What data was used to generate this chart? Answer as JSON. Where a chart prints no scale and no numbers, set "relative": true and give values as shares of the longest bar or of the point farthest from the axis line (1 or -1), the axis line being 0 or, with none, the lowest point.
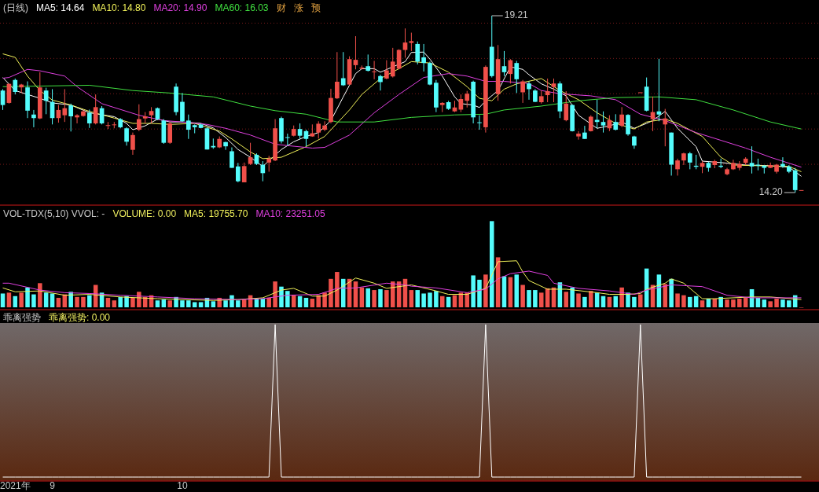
{
  "chart_data": [
    {
      "type": "candlestick",
      "title": "(日线)",
      "legend": "top left",
      "grid": "y",
      "tick_labels": false,
      "yticks": [
        {
          "value": 15,
          "label": null
        },
        {
          "value": 16,
          "label": null
        },
        {
          "value": 17,
          "label": null
        },
        {
          "value": 18,
          "label": null
        },
        {
          "value": 19,
          "label": null
        }
      ],
      "categories": [
        null,
        null,
        null,
        null,
        null,
        null,
        null,
        null,
        null,
        null,
        null,
        null,
        null,
        null,
        null,
        null,
        null,
        null,
        null,
        null,
        null,
        null,
        null,
        null,
        null,
        null,
        null,
        null,
        null,
        null,
        null,
        null,
        null,
        null,
        null,
        null,
        null,
        null,
        null,
        null,
        null,
        null,
        null,
        null,
        null,
        null,
        null,
        null,
        null,
        null,
        null,
        null,
        null,
        null,
        null,
        null,
        null,
        null,
        null,
        null,
        null,
        null,
        null,
        null,
        null,
        null,
        null,
        null,
        null,
        null,
        null,
        null,
        null,
        null,
        null,
        null,
        null,
        null,
        null,
        null,
        null,
        null,
        null,
        null,
        null,
        null,
        null,
        null,
        null,
        null,
        null,
        null,
        null,
        null,
        null,
        null,
        null,
        null,
        null,
        null,
        null,
        null,
        null,
        null,
        null,
        null,
        null,
        null,
        null,
        null,
        null,
        null,
        null,
        null,
        null,
        null,
        null,
        null,
        null,
        null,
        null,
        null,
        null,
        null,
        null,
        null,
        null,
        null,
        null,
        null
      ],
      "ohlc": [
        [
          17.09,
          17.13,
          16.54,
          16.68
        ],
        [
          16.74,
          17.29,
          16.72,
          17.28
        ],
        [
          17.39,
          17.43,
          16.98,
          17.05
        ],
        [
          17.18,
          17.28,
          17.02,
          17.26
        ],
        [
          17.18,
          17.35,
          16.31,
          16.52
        ],
        [
          16.41,
          16.54,
          16.05,
          16.31
        ],
        [
          16.3,
          17.61,
          16.28,
          17.18
        ],
        [
          17.09,
          17.17,
          16.42,
          16.8
        ],
        [
          16.77,
          17.13,
          16.13,
          16.31
        ],
        [
          16.31,
          16.68,
          16.18,
          16.54
        ],
        [
          16.39,
          17.13,
          16.2,
          16.59
        ],
        [
          16.67,
          16.72,
          15.93,
          16.36
        ],
        [
          16.33,
          16.42,
          16.16,
          16.39
        ],
        [
          16.37,
          16.54,
          16.35,
          16.5
        ],
        [
          16.46,
          16.55,
          16.03,
          16.16
        ],
        [
          16.16,
          16.98,
          16.13,
          16.62
        ],
        [
          16.59,
          16.65,
          16.13,
          16.16
        ],
        [
          16.1,
          16.2,
          16.0,
          16.11
        ],
        [
          16.12,
          16.2,
          16.02,
          16.13
        ],
        [
          16.28,
          16.31,
          16.02,
          16.05
        ],
        [
          16.02,
          16.05,
          15.53,
          15.64
        ],
        [
          15.41,
          15.9,
          15.27,
          15.83
        ],
        [
          15.98,
          16.7,
          15.94,
          16.28
        ],
        [
          16.3,
          16.48,
          16.16,
          16.36
        ],
        [
          16.39,
          16.62,
          16.16,
          16.51
        ],
        [
          16.59,
          16.61,
          16.25,
          16.28
        ],
        [
          16.24,
          16.28,
          15.58,
          15.61
        ],
        [
          15.61,
          16.2,
          15.58,
          16.16
        ],
        [
          17.2,
          17.29,
          16.39,
          16.48
        ],
        [
          16.77,
          17.02,
          16.2,
          16.22
        ],
        [
          16.24,
          16.41,
          15.72,
          15.98
        ],
        [
          16.11,
          16.13,
          15.88,
          16.05
        ],
        [
          16.13,
          16.15,
          16.02,
          16.03
        ],
        [
          16.02,
          16.05,
          15.42,
          15.42
        ],
        [
          15.52,
          15.73,
          15.44,
          15.48
        ],
        [
          15.48,
          15.79,
          15.46,
          15.72
        ],
        [
          15.63,
          15.64,
          15.41,
          15.51
        ],
        [
          15.37,
          15.48,
          14.9,
          14.9
        ],
        [
          14.94,
          15.04,
          14.49,
          14.52
        ],
        [
          14.49,
          15.05,
          14.49,
          14.95
        ],
        [
          15.01,
          15.61,
          14.98,
          15.2
        ],
        [
          15.27,
          15.31,
          14.98,
          15.01
        ],
        [
          14.99,
          15.09,
          14.52,
          14.75
        ],
        [
          15.05,
          15.24,
          14.79,
          15.16
        ],
        [
          15.11,
          16.28,
          15.09,
          16.02
        ],
        [
          16.31,
          16.35,
          15.59,
          15.65
        ],
        [
          15.77,
          15.87,
          15.53,
          15.75
        ],
        [
          15.81,
          16.1,
          15.79,
          16.0
        ],
        [
          16.0,
          16.16,
          15.72,
          15.81
        ],
        [
          15.94,
          15.98,
          15.51,
          15.72
        ],
        [
          15.79,
          16.13,
          15.78,
          15.88
        ],
        [
          15.9,
          16.22,
          15.73,
          16.15
        ],
        [
          15.98,
          16.22,
          15.94,
          16.1
        ],
        [
          16.2,
          17.14,
          16.16,
          16.88
        ],
        [
          16.87,
          18.18,
          16.85,
          17.34
        ],
        [
          17.44,
          18.18,
          17.22,
          17.24
        ],
        [
          17.26,
          18.06,
          17.24,
          17.98
        ],
        [
          17.81,
          18.63,
          17.69,
          17.96
        ],
        [
          17.71,
          17.8,
          17.69,
          17.74
        ],
        [
          17.78,
          18.11,
          17.63,
          17.65
        ],
        [
          17.61,
          17.93,
          17.41,
          17.63
        ],
        [
          17.5,
          17.54,
          17.09,
          17.33
        ],
        [
          17.43,
          17.95,
          17.41,
          17.66
        ],
        [
          17.49,
          18.3,
          17.46,
          17.91
        ],
        [
          17.71,
          18.26,
          17.69,
          18.24
        ],
        [
          18.24,
          18.85,
          18.02,
          18.45
        ],
        [
          18.44,
          18.73,
          18.21,
          18.49
        ],
        [
          18.41,
          18.48,
          17.83,
          17.91
        ],
        [
          18.03,
          18.41,
          17.63,
          17.87
        ],
        [
          17.87,
          17.91,
          17.24,
          17.26
        ],
        [
          17.31,
          17.39,
          16.48,
          16.61
        ],
        [
          16.68,
          16.76,
          16.48,
          16.74
        ],
        [
          16.76,
          16.8,
          16.54,
          16.57
        ],
        [
          16.5,
          16.8,
          16.48,
          16.61
        ],
        [
          16.55,
          16.98,
          16.48,
          16.85
        ],
        [
          16.8,
          17.08,
          16.61,
          17.0
        ],
        [
          17.34,
          17.37,
          16.16,
          16.33
        ],
        [
          16.19,
          16.39,
          15.98,
          16.18
        ],
        [
          16.05,
          17.8,
          15.9,
          17.76
        ],
        [
          18.33,
          19.21,
          17.46,
          17.5
        ],
        [
          16.99,
          18.38,
          16.8,
          17.98
        ],
        [
          17.78,
          18.21,
          17.5,
          17.61
        ],
        [
          17.56,
          17.98,
          17.29,
          17.95
        ],
        [
          17.87,
          17.93,
          17.02,
          17.41
        ],
        [
          17.04,
          17.39,
          16.74,
          17.35
        ],
        [
          17.29,
          17.35,
          16.83,
          17.13
        ],
        [
          17.09,
          17.13,
          16.76,
          16.77
        ],
        [
          16.76,
          17.09,
          16.72,
          16.93
        ],
        [
          16.96,
          17.43,
          16.76,
          17.07
        ],
        [
          17.19,
          17.43,
          16.76,
          17.29
        ],
        [
          17.29,
          17.35,
          16.31,
          16.5
        ],
        [
          16.25,
          17.07,
          16.22,
          16.72
        ],
        [
          16.68,
          16.7,
          15.93,
          15.94
        ],
        [
          15.79,
          15.94,
          15.7,
          15.87
        ],
        [
          15.9,
          16.09,
          15.72,
          15.72
        ],
        [
          15.94,
          16.39,
          15.93,
          16.35
        ],
        [
          16.26,
          16.83,
          16.02,
          16.2
        ],
        [
          16.2,
          16.5,
          15.9,
          16.1
        ],
        [
          16.02,
          16.39,
          15.94,
          16.25
        ],
        [
          16.2,
          16.42,
          15.96,
          15.98
        ],
        [
          16.09,
          16.62,
          16.05,
          16.41
        ],
        [
          16.4,
          16.42,
          15.81,
          15.85
        ],
        [
          15.79,
          15.81,
          15.44,
          15.53
        ],
        [
          17.04,
          17.04,
          17.04,
          17.04
        ],
        [
          17.2,
          17.46,
          16.5,
          16.52
        ],
        [
          16.28,
          16.92,
          15.94,
          16.48
        ],
        [
          16.5,
          17.99,
          16.22,
          16.41
        ],
        [
          16.13,
          16.57,
          15.51,
          16.3
        ],
        [
          15.9,
          15.9,
          14.68,
          14.99
        ],
        [
          14.86,
          15.16,
          14.68,
          15.11
        ],
        [
          15.11,
          15.33,
          14.98,
          15.31
        ],
        [
          15.31,
          15.35,
          14.86,
          15.05
        ],
        [
          14.96,
          15.27,
          14.86,
          14.93
        ],
        [
          14.93,
          15.09,
          14.75,
          15.04
        ],
        [
          15.04,
          15.07,
          14.79,
          14.9
        ],
        [
          14.98,
          15.13,
          14.89,
          15.09
        ],
        [
          14.96,
          15.16,
          14.89,
          14.93
        ],
        [
          14.72,
          14.9,
          14.69,
          14.86
        ],
        [
          14.86,
          15.13,
          14.84,
          15.04
        ],
        [
          14.9,
          15.09,
          14.83,
          15.01
        ],
        [
          15.04,
          15.2,
          14.98,
          15.16
        ],
        [
          15.04,
          15.51,
          14.74,
          14.94
        ],
        [
          14.99,
          15.16,
          14.83,
          14.96
        ],
        [
          14.96,
          14.98,
          14.74,
          14.9
        ],
        [
          14.9,
          15.05,
          14.89,
          14.98
        ],
        [
          14.79,
          15.01,
          14.74,
          14.99
        ],
        [
          15.01,
          15.2,
          14.9,
          14.94
        ],
        [
          14.94,
          14.98,
          14.75,
          14.79
        ],
        [
          14.83,
          14.9,
          14.2,
          14.27
        ],
        [
          14.27,
          14.27,
          14.27,
          14.27
        ]
      ],
      "series": [
        {
          "name": "MA5: 14.64",
          "type": "line",
          "color": "#ffffff",
          "values": [
            17.46,
            null,
            17.09,
            null,
            null,
            null,
            16.87,
            null,
            16.74,
            null,
            null,
            16.68,
            null,
            null,
            16.46,
            null,
            null,
            null,
            16.35,
            null,
            16.16,
            15.98,
            null,
            16.09,
            null,
            16.28,
            null,
            16.2,
            null,
            16.2,
            null,
            null,
            16.16,
            null,
            16.03,
            null,
            15.76,
            null,
            15.42,
            null,
            15.2,
            null,
            14.94,
            null,
            null,
            15.42,
            null,
            15.64,
            null,
            15.79,
            null,
            15.9,
            null,
            16.24,
            null,
            16.91,
            null,
            17.57,
            17.71,
            null,
            17.71,
            17.61,
            null,
            17.76,
            null,
            17.91,
            18.17,
            null,
            18.18,
            17.98,
            null,
            17.5,
            null,
            16.91,
            16.72,
            null,
            16.68,
            16.61,
            16.8,
            null,
            17.09,
            null,
            17.76,
            null,
            17.69,
            17.54,
            null,
            17.28,
            null,
            17.13,
            null,
            16.94,
            null,
            16.39,
            null,
            null,
            16.02,
            null,
            16.09,
            null,
            16.2,
            null,
            16.02,
            null,
            16.16,
            16.24,
            null,
            16.5,
            null,
            16.02,
            null,
            null,
            15.5,
            15.09,
            null,
            null,
            15.05,
            null,
            null,
            null,
            14.98,
            null,
            null,
            null,
            14.96,
            null,
            null,
            14.92,
            null,
            14.66
          ]
        },
        {
          "name": "MA10: 14.80",
          "type": "line",
          "color": "#f2f25a",
          "values": [
            18.13,
            null,
            18.03,
            null,
            17.5,
            null,
            17.09,
            null,
            16.82,
            null,
            null,
            16.68,
            null,
            null,
            16.5,
            null,
            null,
            null,
            16.31,
            null,
            null,
            16.16,
            null,
            null,
            16.16,
            null,
            null,
            16.13,
            null,
            null,
            null,
            16.16,
            null,
            null,
            null,
            15.94,
            null,
            15.72,
            null,
            null,
            15.35,
            null,
            15.16,
            null,
            null,
            15.2,
            null,
            null,
            null,
            15.5,
            null,
            null,
            15.79,
            null,
            null,
            null,
            16.54,
            null,
            16.98,
            null,
            null,
            17.43,
            null,
            null,
            17.71,
            null,
            17.91,
            null,
            null,
            17.87,
            null,
            null,
            17.61,
            null,
            null,
            17.2,
            null,
            16.87,
            null,
            16.8,
            null,
            17.13,
            null,
            17.28,
            null,
            null,
            null,
            17.43,
            null,
            null,
            17.09,
            null,
            null,
            16.83,
            null,
            null,
            16.46,
            null,
            null,
            16.16,
            null,
            null,
            16.0,
            null,
            16.2,
            null,
            null,
            16.28,
            null,
            16.16,
            null,
            null,
            null,
            15.79,
            null,
            null,
            15.2,
            null,
            14.98,
            null,
            null,
            null,
            14.96,
            null,
            null,
            null,
            null,
            14.94,
            null,
            14.79
          ]
        },
        {
          "name": "MA20: 14.90",
          "type": "line",
          "color": "#e040e0",
          "values": [
            17.44,
            17.46,
            null,
            null,
            17.69,
            null,
            17.65,
            null,
            null,
            null,
            17.5,
            null,
            17.2,
            null,
            null,
            null,
            16.72,
            null,
            null,
            null,
            null,
            null,
            16.39,
            null,
            null,
            null,
            16.24,
            null,
            null,
            16.2,
            null,
            null,
            null,
            16.13,
            null,
            null,
            16.02,
            null,
            null,
            null,
            15.83,
            null,
            null,
            null,
            15.57,
            null,
            15.53,
            null,
            null,
            null,
            15.46,
            null,
            15.48,
            null,
            null,
            null,
            15.83,
            null,
            null,
            null,
            16.46,
            null,
            null,
            null,
            16.98,
            null,
            null,
            null,
            17.46,
            null,
            null,
            null,
            17.57,
            null,
            null,
            17.5,
            null,
            null,
            17.35,
            null,
            null,
            17.35,
            null,
            null,
            null,
            17.29,
            null,
            17.09,
            null,
            null,
            17.0,
            null,
            null,
            null,
            null,
            16.94,
            null,
            null,
            null,
            16.83,
            null,
            null,
            null,
            16.42,
            null,
            null,
            null,
            16.24,
            null,
            null,
            null,
            null,
            15.9,
            null,
            null,
            null,
            15.68,
            null,
            null,
            null,
            15.46,
            null,
            null,
            null,
            15.2,
            null,
            null,
            null,
            null,
            14.92
          ]
        },
        {
          "name": "MA60: 16.03",
          "type": "line",
          "color": "#40e040",
          "values": [
            17.2,
            null,
            null,
            null,
            null,
            null,
            null,
            null,
            null,
            null,
            null,
            null,
            null,
            null,
            17.24,
            null,
            null,
            null,
            null,
            null,
            null,
            17.09,
            null,
            null,
            null,
            null,
            null,
            17.02,
            null,
            null,
            null,
            null,
            null,
            null,
            16.91,
            null,
            null,
            null,
            null,
            null,
            16.65,
            null,
            null,
            null,
            16.52,
            null,
            null,
            null,
            null,
            16.42,
            null,
            null,
            null,
            null,
            16.2,
            null,
            null,
            null,
            null,
            null,
            16.2,
            null,
            null,
            null,
            null,
            null,
            16.33,
            null,
            null,
            null,
            null,
            null,
            null,
            16.4,
            null,
            null,
            null,
            null,
            16.42,
            null,
            null,
            16.54,
            null,
            null,
            null,
            null,
            null,
            16.65,
            null,
            null,
            null,
            null,
            null,
            16.8,
            null,
            null,
            null,
            null,
            null,
            16.89,
            null,
            null,
            null,
            null,
            null,
            null,
            16.91,
            null,
            null,
            null,
            null,
            null,
            16.83,
            null,
            null,
            null,
            null,
            null,
            16.54,
            null,
            null,
            null,
            null,
            null,
            16.2,
            null,
            null,
            null,
            null,
            16.0
          ]
        }
      ],
      "annotations": [
        "19.21",
        "14.20",
        "财",
        "涨",
        "预"
      ]
    },
    {
      "type": "bar",
      "title": "VOL-TDX(5,10) VVOL: -",
      "relative": true,
      "legend": "top left",
      "tick_labels": false,
      "categories": [
        null,
        null,
        null,
        null,
        null,
        null,
        null,
        null,
        null,
        null,
        null,
        null,
        null,
        null,
        null,
        null,
        null,
        null,
        null,
        null,
        null,
        null,
        null,
        null,
        null,
        null,
        null,
        null,
        null,
        null,
        null,
        null,
        null,
        null,
        null,
        null,
        null,
        null,
        null,
        null,
        null,
        null,
        null,
        null,
        null,
        null,
        null,
        null,
        null,
        null,
        null,
        null,
        null,
        null,
        null,
        null,
        null,
        null,
        null,
        null,
        null,
        null,
        null,
        null,
        null,
        null,
        null,
        null,
        null,
        null,
        null,
        null,
        null,
        null,
        null,
        null,
        null,
        null,
        null,
        null,
        null,
        null,
        null,
        null,
        null,
        null,
        null,
        null,
        null,
        null,
        null,
        null,
        null,
        null,
        null,
        null,
        null,
        null,
        null,
        null,
        null,
        null,
        null,
        null,
        null,
        null,
        null,
        null,
        null,
        null,
        null,
        null,
        null,
        null,
        null,
        null,
        null,
        null,
        null,
        null,
        null,
        null,
        null,
        null,
        null,
        null,
        null,
        null,
        null,
        null
      ],
      "annotations": [
        "VOLUME: 0.00"
      ],
      "series": [
        {
          "color": "#f0504a",
          "values": [
            null,
            0.17,
            null,
            0.17,
            null,
            null,
            0.28,
            null,
            null,
            0.11,
            0.15,
            null,
            0.12,
            0.12,
            null,
            0.26,
            null,
            0.11,
            0.08,
            null,
            null,
            0.11,
            0.18,
            0.12,
            0.14,
            null,
            null,
            0.08,
            null,
            null,
            null,
            null,
            null,
            null,
            null,
            0.11,
            null,
            null,
            null,
            0.09,
            0.14,
            null,
            null,
            0.11,
            0.3,
            null,
            null,
            0.14,
            null,
            null,
            0.1,
            0.14,
            0.17,
            0.33,
            0.41,
            null,
            0.33,
            0.3,
            0.23,
            null,
            0.2,
            null,
            0.2,
            0.3,
            0.3,
            0.33,
            0.2,
            null,
            null,
            null,
            null,
            0.13,
            null,
            0.14,
            0.17,
            0.17,
            null,
            null,
            0.38,
            null,
            0.58,
            null,
            0.35,
            null,
            0.26,
            null,
            null,
            0.17,
            0.22,
            0.23,
            null,
            0.18,
            null,
            0.16,
            null,
            0.19,
            null,
            null,
            0.12,
            null,
            0.23,
            null,
            null,
            0.15,
            null,
            0.26,
            null,
            0.27,
            null,
            0.16,
            0.14,
            null,
            null,
            0.08,
            null,
            0.1,
            null,
            0.09,
            0.09,
            0.1,
            0.11,
            null,
            null,
            null,
            0.07,
            0.1,
            null,
            null,
            null,
            0
          ]
        },
        {
          "color": "#54fcfc",
          "values": [
            0.16,
            null,
            0.13,
            null,
            0.23,
            0.15,
            null,
            0.17,
            0.16,
            null,
            null,
            0.18,
            null,
            null,
            0.14,
            null,
            0.17,
            null,
            null,
            0.12,
            0.13,
            null,
            null,
            null,
            null,
            0.08,
            0.09,
            null,
            0.12,
            0.08,
            0.08,
            0.06,
            0.06,
            0.11,
            0.07,
            null,
            0.08,
            0.14,
            0.08,
            null,
            null,
            0.1,
            0.1,
            null,
            null,
            0.24,
            0.19,
            null,
            0.13,
            0.11,
            null,
            null,
            null,
            null,
            null,
            0.33,
            null,
            null,
            null,
            0.22,
            null,
            0.21,
            null,
            null,
            null,
            null,
            null,
            0.2,
            0.16,
            0.17,
            0.19,
            null,
            0.12,
            null,
            null,
            null,
            0.37,
            0.32,
            null,
            1,
            null,
            0.36,
            null,
            0.38,
            null,
            0.2,
            0.2,
            null,
            null,
            null,
            0.29,
            null,
            0.23,
            null,
            0.12,
            null,
            0.17,
            0.13,
            null,
            0.13,
            null,
            0.17,
            0.12,
            null,
            0.45,
            null,
            0.38,
            null,
            0.33,
            null,
            null,
            0.12,
            0.13,
            null,
            0.1,
            null,
            0.12,
            null,
            null,
            null,
            null,
            0.21,
            0.11,
            0.09,
            null,
            null,
            0.09,
            0.08,
            0.14,
            null
          ]
        },
        {
          "name": "MA5: 19755.70",
          "type": "line",
          "color": "#f2f25a",
          "values": [
            0.225,
            null,
            0.18,
            null,
            null,
            null,
            0.19,
            null,
            null,
            null,
            0.14,
            null,
            null,
            null,
            0.15,
            null,
            null,
            null,
            null,
            0.12,
            null,
            null,
            0.11,
            null,
            null,
            0.1,
            null,
            null,
            null,
            0.09,
            null,
            null,
            null,
            null,
            0.08,
            null,
            null,
            null,
            0.09,
            null,
            null,
            null,
            0.11,
            null,
            null,
            0.2,
            null,
            0.22,
            null,
            null,
            0.13,
            null,
            0.13,
            null,
            0.2,
            null,
            null,
            0.34,
            null,
            null,
            0.28,
            null,
            0.22,
            null,
            null,
            0.25,
            0.26,
            null,
            null,
            null,
            0.19,
            null,
            0.15,
            null,
            null,
            0.15,
            null,
            null,
            0.22,
            null,
            0.53,
            null,
            null,
            0.54,
            0.41,
            0.31,
            null,
            null,
            0.21,
            null,
            null,
            0.21,
            null,
            null,
            null,
            null,
            0.17,
            null,
            0.15,
            null,
            null,
            0.15,
            null,
            0.16,
            0.21,
            null,
            null,
            0.28,
            0.33,
            null,
            0.28,
            null,
            null,
            0.1,
            null,
            0.1,
            null,
            null,
            null,
            null,
            null,
            0.12,
            null,
            null,
            0.12,
            null,
            null,
            null,
            null,
            0.09
          ]
        },
        {
          "name": "MA10: 23251.05",
          "type": "line",
          "color": "#e040e0",
          "values": [
            0.28,
            0.28,
            null,
            null,
            null,
            null,
            0.2,
            null,
            null,
            null,
            0.17,
            null,
            null,
            null,
            0.16,
            null,
            null,
            null,
            null,
            0.14,
            null,
            null,
            null,
            null,
            null,
            0.12,
            null,
            null,
            null,
            null,
            null,
            0.1,
            null,
            null,
            null,
            null,
            null,
            null,
            0.09,
            null,
            null,
            null,
            0.1,
            null,
            null,
            null,
            0.14,
            null,
            null,
            null,
            null,
            0.15,
            null,
            null,
            0.22,
            null,
            null,
            0.225,
            null,
            null,
            null,
            null,
            0.28,
            null,
            null,
            0.26,
            0.245,
            null,
            null,
            null,
            0.225,
            null,
            null,
            null,
            null,
            0.17,
            null,
            null,
            0.21,
            null,
            0.33,
            null,
            0.39,
            null,
            null,
            0.42,
            null,
            null,
            0.37,
            0.28,
            null,
            null,
            null,
            0.22,
            null,
            null,
            null,
            null,
            0.19,
            null,
            null,
            null,
            0.15,
            null,
            0.2,
            null,
            null,
            null,
            0.26,
            null,
            null,
            null,
            null,
            0.24,
            null,
            null,
            null,
            0.14,
            null,
            null,
            null,
            0.11,
            null,
            null,
            null,
            null,
            null,
            null,
            null,
            0.11
          ]
        }
      ]
    },
    {
      "type": "line",
      "title": "乖离强势",
      "relative": true,
      "tick_labels": "x",
      "categories": [
        null,
        null,
        "2021年",
        null,
        null,
        null,
        null,
        null,
        "9",
        null,
        null,
        null,
        null,
        null,
        null,
        null,
        null,
        null,
        null,
        null,
        null,
        null,
        null,
        null,
        null,
        null,
        null,
        null,
        null,
        "10",
        null,
        null,
        null,
        null,
        null,
        null,
        null,
        null,
        null,
        null,
        null,
        null,
        null,
        null,
        null,
        null,
        null,
        null,
        null,
        null,
        null,
        null,
        null,
        null,
        null,
        null,
        null,
        null,
        null,
        null,
        null,
        null,
        null,
        null,
        null,
        null,
        null,
        null,
        null,
        null,
        null,
        null,
        null,
        null,
        null,
        null,
        null,
        null,
        null,
        null,
        null,
        null,
        null,
        null,
        null,
        null,
        null,
        null,
        null,
        null,
        null,
        null,
        null,
        null,
        null,
        null,
        null,
        null,
        null,
        null,
        null,
        null,
        null,
        null,
        null,
        null,
        null,
        null,
        null,
        null,
        null,
        null,
        null,
        null,
        null,
        null,
        null,
        null,
        null,
        null,
        null,
        null,
        null,
        null,
        null,
        null,
        null,
        null,
        null,
        null
      ],
      "annotations": [
        "乖离强势: 0.00"
      ],
      "series": [
        {
          "color": "#ffffff",
          "values": [
            0,
            0,
            0,
            0,
            0,
            0,
            0,
            0,
            0,
            0,
            0,
            0,
            0,
            0,
            0,
            0,
            0,
            0,
            0,
            0,
            0,
            0,
            0,
            0,
            0,
            0,
            0,
            0,
            0,
            0,
            0,
            0,
            0,
            0,
            0,
            0,
            0,
            0,
            0,
            0,
            0,
            0,
            0,
            0,
            1,
            0,
            0,
            0,
            0,
            0,
            0,
            0,
            0,
            0,
            0,
            0,
            0,
            0,
            0,
            0,
            0,
            0,
            0,
            0,
            0,
            0,
            0,
            0,
            0,
            0,
            0,
            0,
            0,
            0,
            0,
            0,
            0,
            0,
            1,
            0,
            0,
            0,
            0,
            0,
            0,
            0,
            0,
            0,
            0,
            0,
            0,
            0,
            0,
            0,
            0,
            0,
            0,
            0,
            0,
            0,
            0,
            0,
            0,
            1,
            0,
            0,
            0,
            0,
            0,
            0,
            0,
            0,
            0,
            0,
            0,
            0,
            0,
            0,
            0,
            0,
            0,
            0,
            0,
            0,
            0,
            0,
            0,
            0,
            0,
            0
          ]
        }
      ]
    }
  ]
}
